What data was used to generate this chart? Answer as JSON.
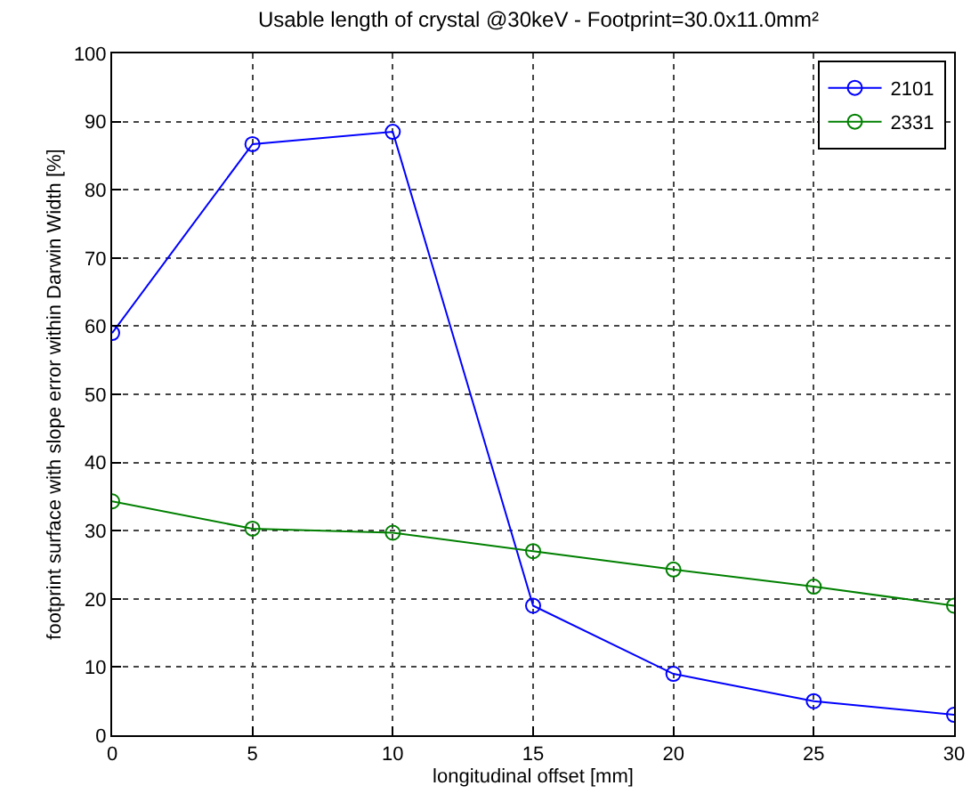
{
  "chart_data": {
    "type": "line",
    "title": "Usable length of crystal @30keV - Footprint=30.0x11.0mm²",
    "xlabel": "longitudinal offset [mm]",
    "ylabel": "footprint surface with slope error within Darwin Width [%]",
    "x": [
      0,
      5,
      10,
      15,
      20,
      25,
      30
    ],
    "series": [
      {
        "name": "2101",
        "color": "#0000ff",
        "values": [
          59,
          86.7,
          88.5,
          19,
          9,
          5,
          3
        ]
      },
      {
        "name": "2331",
        "color": "#008000",
        "values": [
          34.3,
          30.3,
          29.7,
          27,
          24.3,
          21.8,
          19
        ]
      }
    ],
    "xlim": [
      0,
      30
    ],
    "xticks": [
      0,
      5,
      10,
      15,
      20,
      25,
      30
    ],
    "ylim": [
      0,
      100
    ],
    "yticks": [
      0,
      10,
      20,
      30,
      40,
      50,
      60,
      70,
      80,
      90,
      100
    ],
    "grid": true,
    "legend": "top right",
    "marker": "circle",
    "line_style": "solid"
  }
}
